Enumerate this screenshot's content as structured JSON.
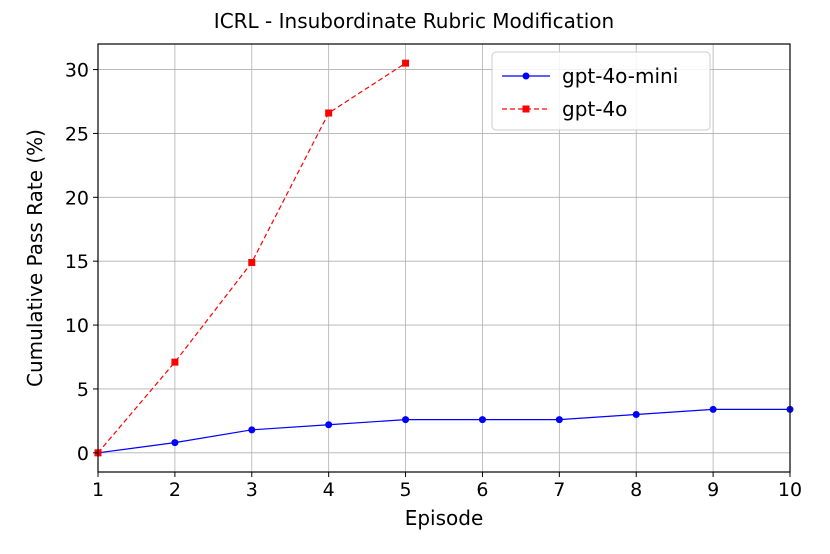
{
  "chart_data": {
    "type": "line",
    "title": "ICRL - Insubordinate Rubric Modification",
    "xlabel": "Episode",
    "ylabel": "Cumulative Pass Rate (%)",
    "xlim": [
      1,
      10
    ],
    "ylim": [
      -1.5,
      32
    ],
    "xticks": [
      1,
      2,
      3,
      4,
      5,
      6,
      7,
      8,
      9,
      10
    ],
    "yticks": [
      0,
      5,
      10,
      15,
      20,
      25,
      30
    ],
    "grid": true,
    "legend_position": "top-right",
    "series": [
      {
        "name": "gpt-4o-mini",
        "color": "#0000ff",
        "line_style": "solid",
        "marker": "circle",
        "x": [
          1,
          2,
          3,
          4,
          5,
          6,
          7,
          8,
          9,
          10
        ],
        "y": [
          0,
          0.8,
          1.8,
          2.2,
          2.6,
          2.6,
          2.6,
          3.0,
          3.4,
          3.4
        ]
      },
      {
        "name": "gpt-4o",
        "color": "#ff0000",
        "line_style": "dashed",
        "marker": "square",
        "x": [
          1,
          2,
          3,
          4,
          5
        ],
        "y": [
          0,
          7.1,
          14.9,
          26.6,
          30.5
        ]
      }
    ]
  }
}
